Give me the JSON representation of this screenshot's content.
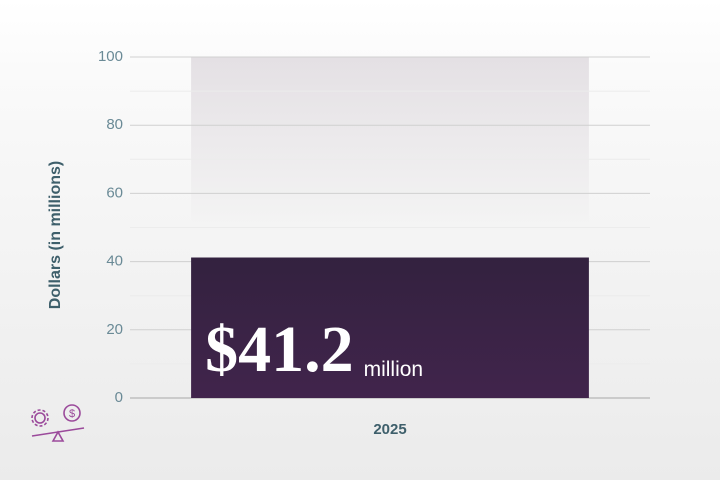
{
  "chart_data": {
    "type": "bar",
    "ylabel": "Dollars (in millions)",
    "categories": [
      "2025"
    ],
    "values": [
      41.2
    ],
    "value_labels": [
      "$41.2"
    ],
    "value_label_suffix": "million",
    "color": "#3a2446",
    "ylim": [
      0,
      100
    ],
    "yticks": [
      0,
      20,
      40,
      60,
      80,
      100
    ],
    "minor_yticks": [
      10,
      30,
      50,
      70,
      90
    ],
    "grid": true
  }
}
